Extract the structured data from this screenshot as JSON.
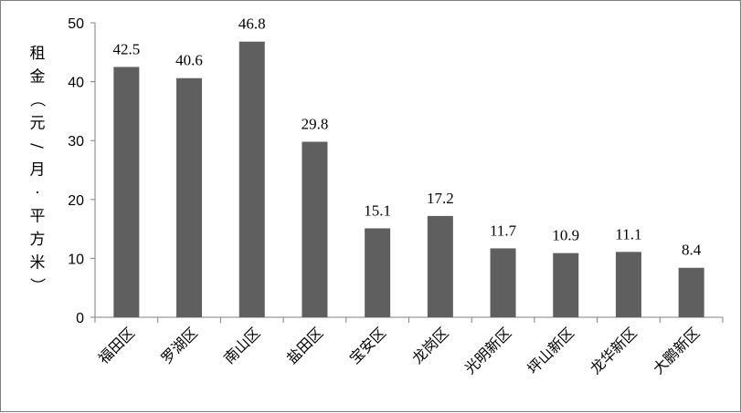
{
  "colors": {
    "bar": "#5f5f5f",
    "axis": "#808080",
    "border": "#7f7f7f",
    "text": "#000000"
  },
  "chart_data": {
    "type": "bar",
    "title": "",
    "xlabel": "",
    "ylabel": "租金（元/月·平方米）",
    "ylim": [
      0,
      50
    ],
    "yticks": [
      0,
      10,
      20,
      30,
      40,
      50
    ],
    "grid": false,
    "legend": "none",
    "categories": [
      "福田区",
      "罗湖区",
      "南山区",
      "盐田区",
      "宝安区",
      "龙岗区",
      "光明新区",
      "坪山新区",
      "龙华新区",
      "大鹏新区"
    ],
    "values": [
      42.5,
      40.6,
      46.8,
      29.8,
      15.1,
      17.2,
      11.7,
      10.9,
      11.1,
      8.4
    ],
    "value_labels": [
      "42.5",
      "40.6",
      "46.8",
      "29.8",
      "15.1",
      "17.2",
      "11.7",
      "10.9",
      "11.1",
      "8.4"
    ]
  }
}
